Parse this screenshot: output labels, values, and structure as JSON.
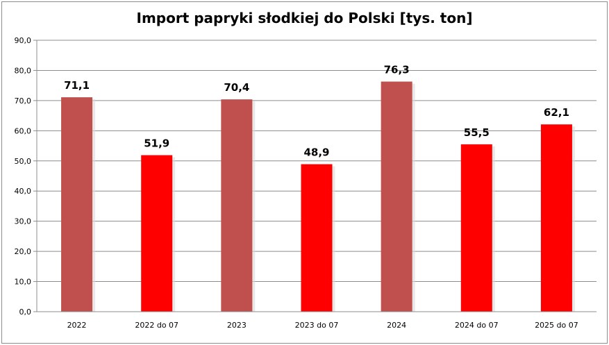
{
  "chart_data": {
    "type": "bar",
    "title": "Import papryki słodkiej do Polski [tys. ton]",
    "xlabel": "",
    "ylabel": "",
    "ylim": [
      0,
      90
    ],
    "yticks": [
      "0,0",
      "10,0",
      "20,0",
      "30,0",
      "40,0",
      "50,0",
      "60,0",
      "70,0",
      "80,0",
      "90,0"
    ],
    "categories": [
      "2022",
      "2022 do 07",
      "2023",
      "2023 do 07",
      "2024",
      "2024 do 07",
      "2025 do 07"
    ],
    "values": [
      71.1,
      51.9,
      70.4,
      48.9,
      76.3,
      55.5,
      62.1
    ],
    "value_labels": [
      "71,1",
      "51,9",
      "70,4",
      "48,9",
      "76,3",
      "55,5",
      "62,1"
    ],
    "bar_colors": [
      "#c0504d",
      "#ff0000",
      "#c0504d",
      "#ff0000",
      "#c0504d",
      "#ff0000",
      "#ff0000"
    ],
    "grid": true,
    "legend": "none"
  }
}
